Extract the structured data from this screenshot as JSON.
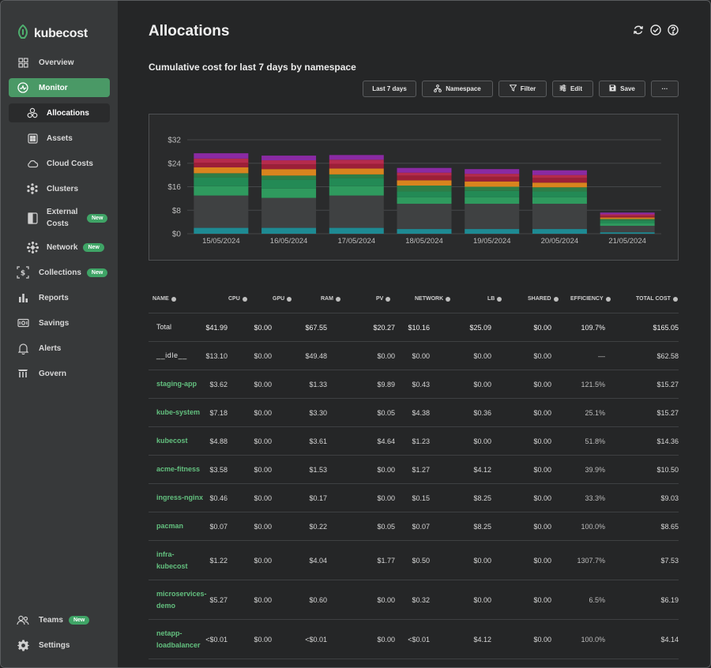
{
  "app": {
    "name": "kubecost"
  },
  "sidebar": {
    "items": [
      {
        "label": "Overview",
        "icon": "grid-icon"
      },
      {
        "label": "Monitor",
        "icon": "monitor-icon"
      },
      {
        "label": "Allocations",
        "icon": "allocations-icon"
      },
      {
        "label": "Assets",
        "icon": "assets-icon"
      },
      {
        "label": "Cloud Costs",
        "icon": "cloud-icon"
      },
      {
        "label": "Clusters",
        "icon": "clusters-icon"
      },
      {
        "label": "External Costs",
        "icon": "external-icon",
        "badge": "New"
      },
      {
        "label": "Network",
        "icon": "network-icon",
        "badge": "New"
      },
      {
        "label": "Collections",
        "icon": "collections-icon",
        "badge": "New"
      },
      {
        "label": "Reports",
        "icon": "reports-icon"
      },
      {
        "label": "Savings",
        "icon": "savings-icon"
      },
      {
        "label": "Alerts",
        "icon": "bell-icon"
      },
      {
        "label": "Govern",
        "icon": "govern-icon"
      },
      {
        "label": "Teams",
        "icon": "teams-icon",
        "badge": "New"
      },
      {
        "label": "Settings",
        "icon": "gear-icon"
      }
    ]
  },
  "header": {
    "title": "Allocations"
  },
  "report": {
    "subtitle": "Cumulative cost for last 7 days by namespace",
    "toolbar": {
      "range": "Last 7 days",
      "aggregate": "Namespace",
      "filter": "Filter",
      "edit": "Edit",
      "save": "Save",
      "more": "···"
    }
  },
  "colors": {
    "accent": "#4a9966",
    "green_text": "#63c07f"
  },
  "chart_data": {
    "type": "bar",
    "stacked": true,
    "categories": [
      "15/05/2024",
      "16/05/2024",
      "17/05/2024",
      "18/05/2024",
      "19/05/2024",
      "20/05/2024",
      "21/05/2024"
    ],
    "yticks": [
      "$0",
      "$8",
      "$16",
      "$24",
      "$32"
    ],
    "ylim": [
      0,
      32
    ],
    "grid": true,
    "series": [
      {
        "color": "#1e8a93",
        "values": [
          2.0,
          2.0,
          2.0,
          1.6,
          1.6,
          1.6,
          0.5
        ]
      },
      {
        "color": "#3f4142",
        "values": [
          11.0,
          10.2,
          11.0,
          8.6,
          8.6,
          8.6,
          2.2
        ]
      },
      {
        "color": "#2f9a5e",
        "values": [
          3.2,
          3.2,
          3.2,
          2.2,
          2.2,
          2.2,
          0.9
        ]
      },
      {
        "color": "#238a55",
        "values": [
          3.0,
          3.0,
          2.8,
          2.0,
          2.2,
          2.0,
          0.9
        ]
      },
      {
        "color": "#2e7d46",
        "values": [
          1.4,
          1.4,
          1.2,
          2.0,
          1.4,
          1.4,
          0.5
        ]
      },
      {
        "color": "#d9841e",
        "values": [
          2.0,
          2.2,
          2.0,
          1.8,
          1.8,
          1.6,
          0.5
        ]
      },
      {
        "color": "#9c1f38",
        "values": [
          1.6,
          1.6,
          1.6,
          1.6,
          1.6,
          1.6,
          0.6
        ]
      },
      {
        "color": "#b52b4c",
        "values": [
          1.4,
          1.4,
          1.4,
          1.0,
          1.0,
          1.0,
          0.5
        ]
      },
      {
        "color": "#8a2aa3",
        "values": [
          1.8,
          1.6,
          1.6,
          1.6,
          1.6,
          1.6,
          0.6
        ]
      }
    ]
  },
  "table": {
    "headers": [
      "NAME",
      "CPU",
      "GPU",
      "RAM",
      "PV",
      "NETWORK",
      "LB",
      "SHARED",
      "EFFICIENCY",
      "TOTAL COST"
    ],
    "rows": [
      {
        "name": "Total",
        "cpu": "$41.99",
        "gpu": "$0.00",
        "ram": "$67.55",
        "pv": "$20.27",
        "network": "$10.16",
        "lb": "$25.09",
        "shared": "$0.00",
        "efficiency": "109.7%",
        "total": "$165.05"
      },
      {
        "name": "__idle__",
        "cpu": "$13.10",
        "gpu": "$0.00",
        "ram": "$49.48",
        "pv": "$0.00",
        "network": "$0.00",
        "lb": "$0.00",
        "shared": "$0.00",
        "efficiency": "—",
        "total": "$62.58"
      },
      {
        "name": "staging-app",
        "cpu": "$3.62",
        "gpu": "$0.00",
        "ram": "$1.33",
        "pv": "$9.89",
        "network": "$0.43",
        "lb": "$0.00",
        "shared": "$0.00",
        "efficiency": "121.5%",
        "total": "$15.27"
      },
      {
        "name": "kube-system",
        "cpu": "$7.18",
        "gpu": "$0.00",
        "ram": "$3.30",
        "pv": "$0.05",
        "network": "$4.38",
        "lb": "$0.36",
        "shared": "$0.00",
        "efficiency": "25.1%",
        "total": "$15.27"
      },
      {
        "name": "kubecost",
        "cpu": "$4.88",
        "gpu": "$0.00",
        "ram": "$3.61",
        "pv": "$4.64",
        "network": "$1.23",
        "lb": "$0.00",
        "shared": "$0.00",
        "efficiency": "51.8%",
        "total": "$14.36"
      },
      {
        "name": "acme-fitness",
        "cpu": "$3.58",
        "gpu": "$0.00",
        "ram": "$1.53",
        "pv": "$0.00",
        "network": "$1.27",
        "lb": "$4.12",
        "shared": "$0.00",
        "efficiency": "39.9%",
        "total": "$10.50"
      },
      {
        "name": "ingress-nginx",
        "cpu": "$0.46",
        "gpu": "$0.00",
        "ram": "$0.17",
        "pv": "$0.00",
        "network": "$0.15",
        "lb": "$8.25",
        "shared": "$0.00",
        "efficiency": "33.3%",
        "total": "$9.03"
      },
      {
        "name": "pacman",
        "cpu": "$0.07",
        "gpu": "$0.00",
        "ram": "$0.22",
        "pv": "$0.05",
        "network": "$0.07",
        "lb": "$8.25",
        "shared": "$0.00",
        "efficiency": "100.0%",
        "total": "$8.65"
      },
      {
        "name": "infra-kubecost",
        "name_lines": [
          "infra-",
          "kubecost"
        ],
        "cpu": "$1.22",
        "gpu": "$0.00",
        "ram": "$4.04",
        "pv": "$1.77",
        "network": "$0.50",
        "lb": "$0.00",
        "shared": "$0.00",
        "efficiency": "1307.7%",
        "total": "$7.53"
      },
      {
        "name": "microservices-demo",
        "name_lines": [
          "microservices-",
          "demo"
        ],
        "cpu": "$5.27",
        "gpu": "$0.00",
        "ram": "$0.60",
        "pv": "$0.00",
        "network": "$0.32",
        "lb": "$0.00",
        "shared": "$0.00",
        "efficiency": "6.5%",
        "total": "$6.19"
      },
      {
        "name": "netapp-loadbalancer",
        "name_lines": [
          "netapp-",
          "loadbalancer"
        ],
        "cpu": "<$0.01",
        "gpu": "$0.00",
        "ram": "<$0.01",
        "pv": "$0.00",
        "network": "<$0.01",
        "lb": "$4.12",
        "shared": "$0.00",
        "efficiency": "100.0%",
        "total": "$4.14"
      }
    ]
  }
}
